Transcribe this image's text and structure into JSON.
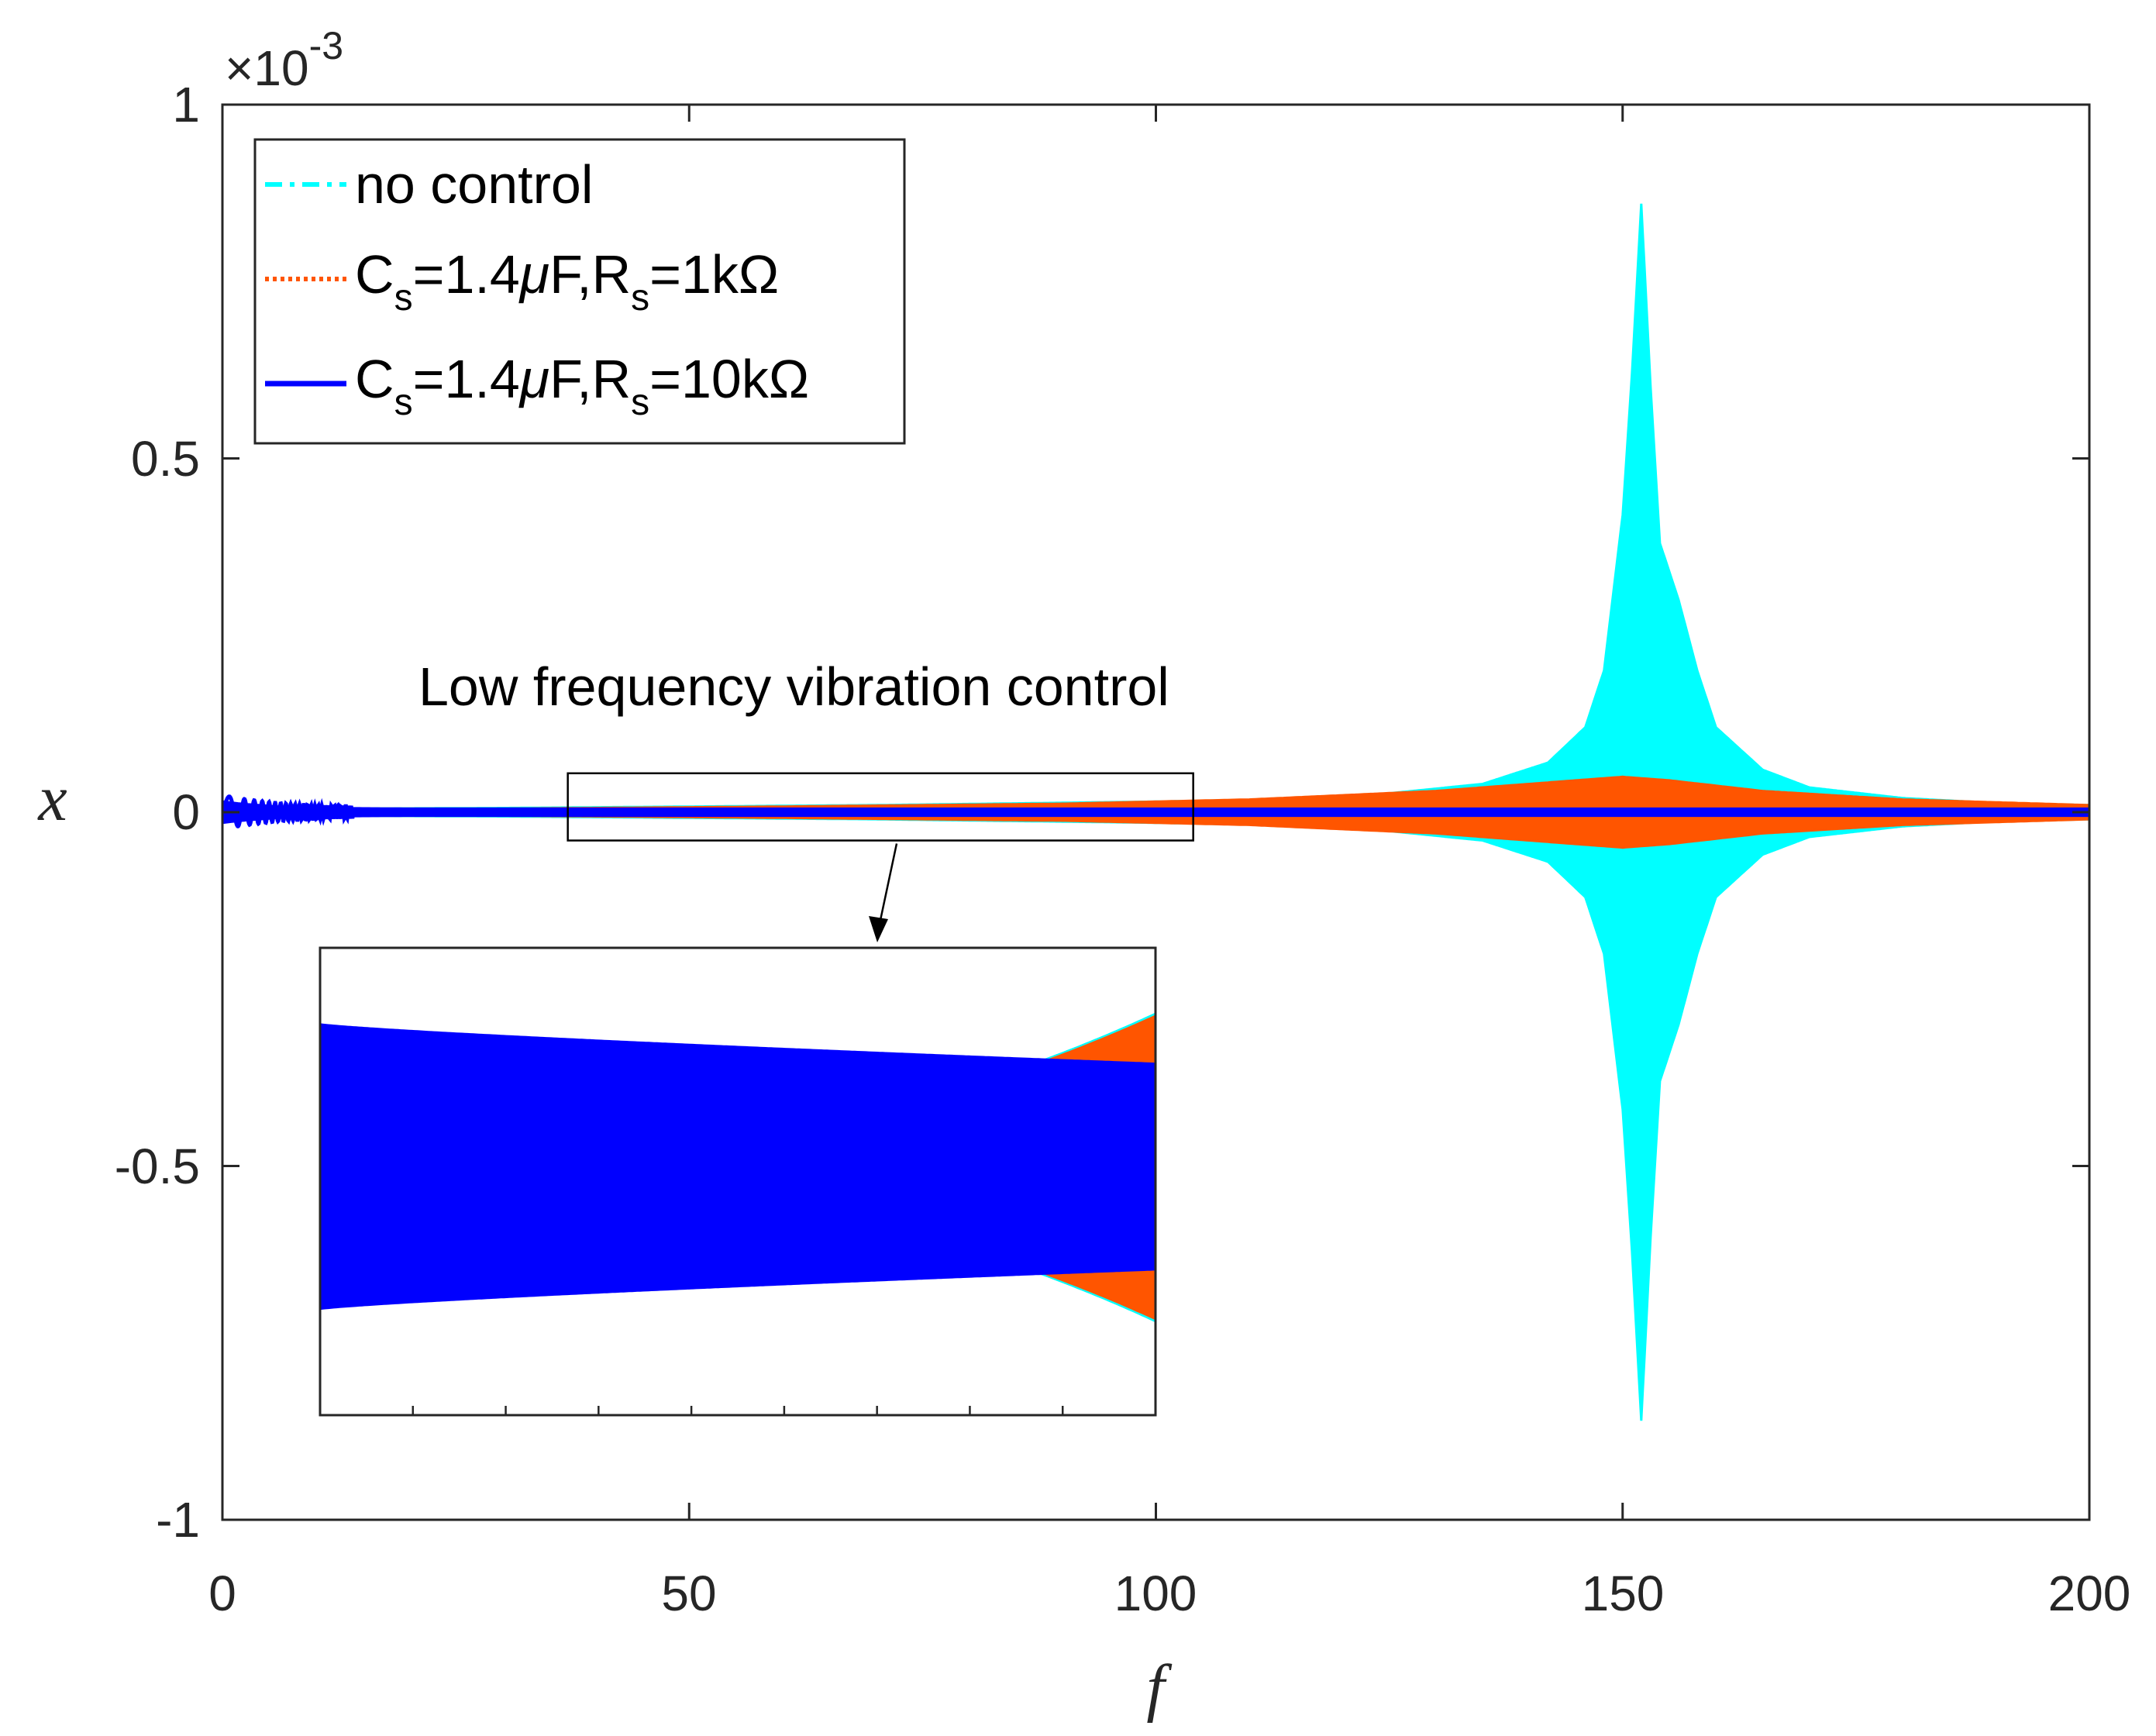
{
  "chart_data": {
    "type": "line",
    "title": "",
    "xlabel": "f",
    "ylabel": "x",
    "y_exponent_label": "×10",
    "y_exponent": "-3",
    "xlim": [
      0,
      200
    ],
    "ylim": [
      -1,
      1
    ],
    "x_ticks": [
      "0",
      "50",
      "100",
      "150",
      "200"
    ],
    "y_ticks": [
      "1",
      "0.5",
      "0",
      "-0.5",
      "-1"
    ],
    "grid": false,
    "legend_position": "top-left",
    "colors": {
      "no_control": "#00FFFF",
      "rs_1k": "#FF5500",
      "rs_10k": "#0000FF"
    },
    "series": [
      {
        "name": "no control",
        "style": "dash-dot",
        "color": "#00FFFF",
        "envelope_f": [
          0,
          10,
          30,
          50,
          70,
          100,
          120,
          135,
          142,
          146,
          148,
          150,
          151,
          152,
          153,
          154,
          156,
          158,
          160,
          165,
          170,
          180,
          190,
          200
        ],
        "envelope_amp_e3": [
          0.01,
          0.005,
          0.006,
          0.008,
          0.01,
          0.015,
          0.02,
          0.04,
          0.07,
          0.12,
          0.2,
          0.42,
          0.62,
          0.86,
          0.6,
          0.38,
          0.3,
          0.2,
          0.12,
          0.06,
          0.035,
          0.02,
          0.013,
          0.01
        ]
      },
      {
        "name": "C_s=1.4μF,R_s=1kΩ",
        "style": "dotted",
        "color": "#FF5500",
        "envelope_f": [
          0,
          30,
          60,
          90,
          110,
          130,
          145,
          150,
          155,
          165,
          180,
          200
        ],
        "envelope_amp_e3": [
          0.005,
          0.005,
          0.008,
          0.012,
          0.018,
          0.03,
          0.045,
          0.05,
          0.045,
          0.03,
          0.018,
          0.01
        ]
      },
      {
        "name": "C_s=1.4μF,R_s=10kΩ",
        "style": "solid",
        "color": "#0000FF",
        "envelope_f": [
          0,
          2,
          4,
          6,
          10,
          20,
          50,
          100,
          150,
          200
        ],
        "envelope_amp_e3": [
          0.015,
          0.012,
          0.01,
          0.008,
          0.006,
          0.005,
          0.005,
          0.005,
          0.005,
          0.005
        ]
      }
    ],
    "annotation": "Low frequency vibration control",
    "zoom_box_f": [
      37,
      104
    ],
    "zoom_box_x_e3": [
      -0.04,
      0.055
    ]
  },
  "legend": {
    "no_control": "no control",
    "rs1_C": "C",
    "rs1_Cs": "s",
    "rs1_eq1": "=1.4",
    "rs1_mu": "μ",
    "rs1_F": "F,R",
    "rs1_Rs": "s",
    "rs1_val": "=1kΩ",
    "rs10_C": "C",
    "rs10_Cs": "s",
    "rs10_eq1": "=1.4",
    "rs10_mu": "μ",
    "rs10_F": "F,R",
    "rs10_Rs": "s",
    "rs10_val": "=10kΩ"
  }
}
